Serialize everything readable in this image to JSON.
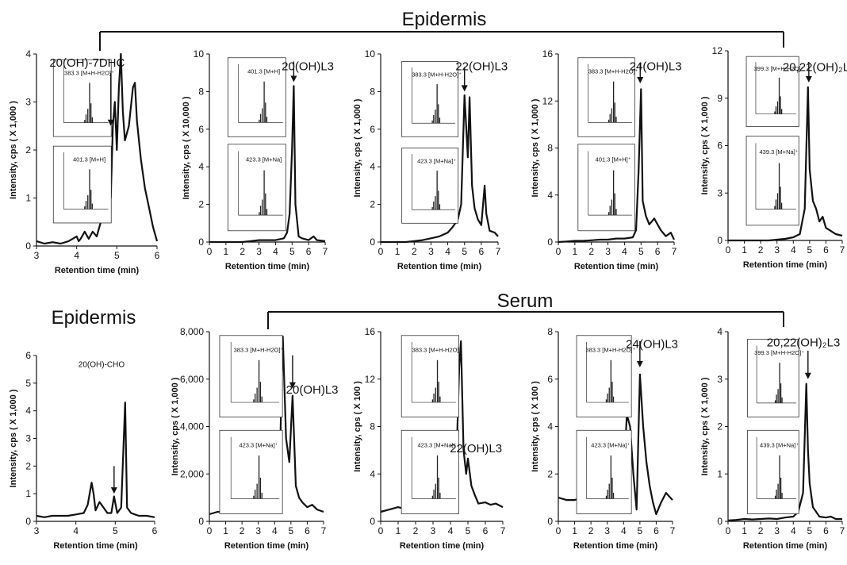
{
  "group_labels": {
    "epidermis_top": "Epidermis",
    "serum": "Serum",
    "epidermis_bottom": "Epidermis"
  },
  "chart_data": [
    {
      "type": "line",
      "peak_label": "20(OH)-7DHC",
      "xlabel": "Retention time (min)",
      "ylabel": "Intensity, cps ( X 1,000 )",
      "xlim": [
        3,
        6
      ],
      "xticks": [
        "3",
        "4",
        "5",
        "6"
      ],
      "ylim": [
        0,
        4
      ],
      "yticks": [
        "0",
        "1",
        "2",
        "3",
        "4"
      ],
      "series": [
        {
          "x": [
            3.0,
            3.2,
            3.4,
            3.6,
            3.8,
            4.0,
            4.05,
            4.1,
            4.2,
            4.3,
            4.4,
            4.5,
            4.6,
            4.7,
            4.8,
            4.85,
            4.9,
            4.95,
            5.0,
            5.05,
            5.1,
            5.15,
            5.2,
            5.3,
            5.4,
            5.45,
            5.5,
            5.6,
            5.7,
            5.8,
            5.9,
            6.0
          ],
          "y": [
            0.1,
            0.05,
            0.08,
            0.05,
            0.1,
            0.2,
            0.1,
            0.15,
            0.3,
            0.15,
            0.3,
            0.2,
            0.5,
            1.5,
            2.0,
            1.0,
            2.5,
            3.0,
            2.0,
            3.3,
            4.0,
            2.8,
            2.2,
            2.5,
            3.3,
            3.4,
            2.6,
            1.8,
            1.2,
            0.8,
            0.4,
            0.1
          ]
        }
      ],
      "insets": [
        {
          "label": "383.3 [M+H-H2O]⁺"
        },
        {
          "label": "401.3 [M+H]"
        }
      ]
    },
    {
      "type": "line",
      "peak_label": "20(OH)L3",
      "xlabel": "Retention time (min)",
      "ylabel": "Intensity, cps ( X 10,000 )",
      "xlim": [
        0,
        7
      ],
      "xticks": [
        "0",
        "1",
        "2",
        "3",
        "4",
        "5",
        "6",
        "7"
      ],
      "ylim": [
        0,
        10
      ],
      "yticks": [
        "0",
        "2",
        "4",
        "6",
        "8",
        "10"
      ],
      "series": [
        {
          "x": [
            0,
            0.5,
            1,
            1.5,
            2,
            2.5,
            3,
            3.5,
            4,
            4.5,
            4.7,
            4.85,
            5.0,
            5.1,
            5.2,
            5.4,
            5.6,
            6,
            6.3,
            6.5,
            7
          ],
          "y": [
            0,
            0,
            0,
            0,
            0,
            0.05,
            0.1,
            0.1,
            0.1,
            0.2,
            0.5,
            1.5,
            5.0,
            8.3,
            2.0,
            0.3,
            0.2,
            0.1,
            0.3,
            0.1,
            0.05
          ]
        }
      ],
      "insets": [
        {
          "label": "401.3 [M+H]"
        },
        {
          "label": "423.3 [M+Na]"
        }
      ]
    },
    {
      "type": "line",
      "peak_label": "22(OH)L3",
      "xlabel": "Retention time (min)",
      "ylabel": "Intensity, cps ( X 1,000 )",
      "xlim": [
        0,
        7
      ],
      "xticks": [
        "0",
        "1",
        "2",
        "3",
        "4",
        "5",
        "6",
        "7"
      ],
      "ylim": [
        0,
        10
      ],
      "yticks": [
        "0",
        "2",
        "4",
        "6",
        "8",
        "10"
      ],
      "series": [
        {
          "x": [
            0,
            0.5,
            1,
            1.5,
            2,
            2.5,
            3,
            3.5,
            4,
            4.3,
            4.6,
            4.8,
            5.0,
            5.2,
            5.3,
            5.45,
            5.6,
            5.8,
            6.0,
            6.2,
            6.3,
            6.5,
            6.8,
            7.0
          ],
          "y": [
            0,
            0,
            0,
            0,
            0.05,
            0.1,
            0.2,
            0.3,
            0.5,
            0.8,
            1.2,
            2.0,
            7.8,
            4.5,
            7.7,
            3.0,
            1.8,
            1.2,
            0.9,
            3.0,
            1.5,
            0.6,
            0.5,
            0.3
          ]
        }
      ],
      "insets": [
        {
          "label": "383.3 [M+H-H2O]⁺"
        },
        {
          "label": "423.3 [M+Na]⁺"
        }
      ]
    },
    {
      "type": "line",
      "peak_label": "24(OH)L3",
      "xlabel": "Retention time (min)",
      "ylabel": "Intensity, cps ( X 1,000 )",
      "xlim": [
        0,
        7
      ],
      "xticks": [
        "0",
        "1",
        "2",
        "3",
        "4",
        "5",
        "6",
        "7"
      ],
      "ylim": [
        0,
        16
      ],
      "yticks": [
        "0",
        "4",
        "8",
        "12",
        "16"
      ],
      "series": [
        {
          "x": [
            0,
            0.5,
            1,
            1.5,
            2,
            2.5,
            3,
            3.5,
            4,
            4.5,
            4.7,
            4.85,
            5.0,
            5.1,
            5.3,
            5.5,
            5.8,
            6.0,
            6.2,
            6.5,
            6.8,
            7.0
          ],
          "y": [
            0,
            0.05,
            0.1,
            0.1,
            0.15,
            0.2,
            0.2,
            0.3,
            0.3,
            0.4,
            1.0,
            6.0,
            13.0,
            3.5,
            2.2,
            1.5,
            2.0,
            1.5,
            1.0,
            0.5,
            0.8,
            0.2
          ]
        }
      ],
      "insets": [
        {
          "label": "383.3 [M+H-H2O]⁺"
        },
        {
          "label": "401.3 [M+H]⁺"
        }
      ]
    },
    {
      "type": "line",
      "peak_label": "20,22(OH)₂L3",
      "xlabel": "Retention time (min)",
      "ylabel": "Intensity, cps ( X 1,000 )",
      "xlim": [
        0,
        7
      ],
      "xticks": [
        "0",
        "1",
        "2",
        "3",
        "4",
        "5",
        "6",
        "7"
      ],
      "ylim": [
        0,
        12
      ],
      "yticks": [
        "0",
        "3",
        "6",
        "9",
        "12"
      ],
      "series": [
        {
          "x": [
            0,
            0.5,
            1,
            1.5,
            2,
            2.5,
            3,
            3.5,
            4,
            4.4,
            4.7,
            4.9,
            5.0,
            5.2,
            5.4,
            5.6,
            5.8,
            6.0,
            6.3,
            6.6,
            7.0
          ],
          "y": [
            0,
            0,
            0,
            0,
            0,
            0,
            0.05,
            0.1,
            0.2,
            0.4,
            2.0,
            9.7,
            4.5,
            2.5,
            2.0,
            1.2,
            1.5,
            0.8,
            0.6,
            0.4,
            0.3
          ]
        }
      ],
      "insets": [
        {
          "label": "399.3 [M+H-H2O]⁺"
        },
        {
          "label": "439.3 [M+Na]⁺"
        }
      ]
    },
    {
      "type": "line",
      "peak_label": "20(OH)-CHO",
      "xlabel": "Retention time (min)",
      "ylabel": "Intensity, cps ( X 1,000 )",
      "xlim": [
        3,
        6
      ],
      "xticks": [
        "3",
        "4",
        "5",
        "6"
      ],
      "ylim": [
        0,
        6
      ],
      "yticks": [
        "0",
        "1",
        "2",
        "3",
        "4",
        "5",
        "6"
      ],
      "series": [
        {
          "x": [
            3.0,
            3.2,
            3.4,
            3.6,
            3.8,
            4.0,
            4.2,
            4.3,
            4.4,
            4.45,
            4.5,
            4.6,
            4.8,
            4.9,
            4.97,
            5.05,
            5.15,
            5.25,
            5.3,
            5.4,
            5.5,
            5.6,
            5.8,
            6.0
          ],
          "y": [
            0.2,
            0.15,
            0.2,
            0.2,
            0.2,
            0.25,
            0.3,
            0.6,
            1.4,
            1.0,
            0.4,
            0.7,
            0.3,
            0.3,
            0.9,
            0.3,
            0.5,
            4.3,
            0.5,
            0.3,
            0.25,
            0.2,
            0.2,
            0.15
          ]
        }
      ],
      "insets": []
    },
    {
      "type": "line",
      "peak_label": "20(OH)L3",
      "xlabel": "Retention time (min)",
      "ylabel": "Intensity, cps ( X 1,000 )",
      "xlim": [
        0,
        7
      ],
      "xticks": [
        "0",
        "1",
        "2",
        "3",
        "4",
        "5",
        "6",
        "7"
      ],
      "ylim": [
        0,
        8
      ],
      "yticks": [
        "0",
        "2,000",
        "4,000",
        "6,000",
        "8,000"
      ],
      "series": [
        {
          "x": [
            0,
            0.5,
            1,
            1.5,
            2,
            2.5,
            3,
            3.5,
            4,
            4.3,
            4.5,
            4.7,
            4.9,
            5.1,
            5.3,
            5.5,
            5.7,
            6.0,
            6.3,
            6.6,
            7.0
          ],
          "y": [
            0.3,
            0.4,
            0.4,
            0.5,
            0.5,
            0.6,
            0.7,
            0.8,
            1.2,
            2.0,
            7.8,
            3.5,
            2.5,
            5.3,
            1.5,
            1.0,
            0.8,
            0.6,
            0.7,
            0.5,
            0.4
          ]
        }
      ],
      "insets": [
        {
          "label": "383.3 [M+H-H2O]⁺"
        },
        {
          "label": "423.3 [M+Na]⁺"
        }
      ]
    },
    {
      "type": "line",
      "peak_label": "22(OH)L3",
      "xlabel": "Retention time (min)",
      "ylabel": "Intensity, cps ( X 100 )",
      "xlim": [
        0,
        7
      ],
      "xticks": [
        "0",
        "1",
        "2",
        "3",
        "4",
        "5",
        "6",
        "7"
      ],
      "ylim": [
        0,
        16
      ],
      "yticks": [
        "0",
        "4",
        "8",
        "12",
        "16"
      ],
      "series": [
        {
          "x": [
            0,
            0.5,
            1,
            1.5,
            2,
            2.5,
            3,
            3.5,
            4,
            4.3,
            4.5,
            4.6,
            4.75,
            4.9,
            5.0,
            5.2,
            5.4,
            5.6,
            6.0,
            6.3,
            6.6,
            7.0
          ],
          "y": [
            0.8,
            1.0,
            1.2,
            1.0,
            1.3,
            1.5,
            1.4,
            1.6,
            2.0,
            3.0,
            13.0,
            15.2,
            6.0,
            4.0,
            5.3,
            3.0,
            2.2,
            1.5,
            1.6,
            1.4,
            1.5,
            1.2
          ]
        }
      ],
      "insets": [
        {
          "label": "383.3 [M+H-H2O]⁺"
        },
        {
          "label": "423.3 [M+Na]⁺"
        }
      ]
    },
    {
      "type": "line",
      "peak_label": "24(OH)L3",
      "xlabel": "Retention time (min)",
      "ylabel": "Intensity, cps ( X 100 )",
      "xlim": [
        0,
        7
      ],
      "xticks": [
        "0",
        "1",
        "2",
        "3",
        "4",
        "5",
        "6",
        "7"
      ],
      "ylim": [
        0,
        8
      ],
      "yticks": [
        "0",
        "2",
        "4",
        "6",
        "8"
      ],
      "series": [
        {
          "x": [
            0,
            0.5,
            1,
            1.5,
            2,
            2.5,
            3,
            3.5,
            4,
            4.2,
            4.4,
            4.6,
            4.8,
            5.0,
            5.2,
            5.4,
            5.6,
            5.8,
            6.0,
            6.3,
            6.6,
            7.0
          ],
          "y": [
            1.0,
            0.9,
            0.9,
            1.0,
            0.8,
            1.0,
            1.2,
            1.3,
            1.8,
            4.5,
            4.0,
            2.0,
            0.5,
            6.2,
            4.0,
            2.5,
            1.5,
            0.8,
            0.3,
            0.8,
            1.2,
            0.9
          ]
        }
      ],
      "insets": [
        {
          "label": "383.3 [M+H-H2O]⁺"
        },
        {
          "label": "423.3 [M+Na]⁺"
        }
      ]
    },
    {
      "type": "line",
      "peak_label": "20,22(OH)₂L3",
      "xlabel": "Retention time (min)",
      "ylabel": "Intensity, cps ( X 1,000 )",
      "xlim": [
        0,
        7
      ],
      "xticks": [
        "0",
        "1",
        "2",
        "3",
        "4",
        "5",
        "6",
        "7"
      ],
      "ylim": [
        0,
        4
      ],
      "yticks": [
        "0",
        "1",
        "2",
        "3",
        "4"
      ],
      "series": [
        {
          "x": [
            0,
            0.5,
            1,
            1.5,
            2,
            2.5,
            3,
            3.5,
            4,
            4.3,
            4.6,
            4.8,
            4.9,
            5.0,
            5.2,
            5.4,
            5.6,
            6.0,
            6.3,
            6.6,
            7.0
          ],
          "y": [
            0.02,
            0.03,
            0.05,
            0.04,
            0.05,
            0.06,
            0.05,
            0.08,
            0.1,
            0.2,
            0.6,
            2.9,
            1.5,
            0.8,
            0.3,
            0.2,
            0.1,
            0.08,
            0.1,
            0.05,
            0.05
          ]
        }
      ],
      "insets": [
        {
          "label": "399.3 [M+H-H2O]⁺"
        },
        {
          "label": "439.3 [M+Na]⁺"
        }
      ]
    }
  ]
}
